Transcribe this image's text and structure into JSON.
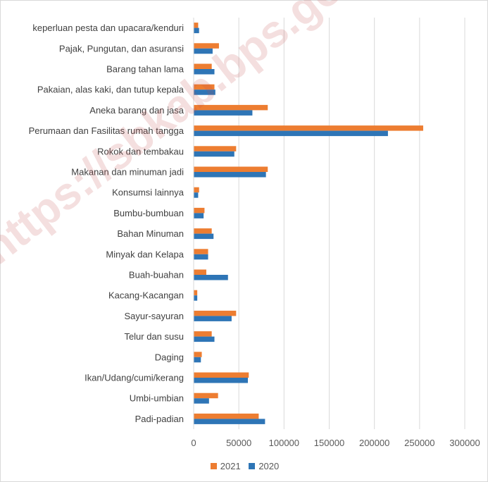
{
  "chart_data": {
    "type": "bar",
    "orientation": "horizontal",
    "categories": [
      "keperluan pesta dan upacara/kenduri",
      "Pajak, Pungutan, dan asuransi",
      "Barang tahan lama",
      "Pakaian, alas kaki, dan tutup kepala",
      "Aneka barang dan jasa",
      "Perumaan dan Fasilitas rumah tangga",
      "Rokok dan tembakau",
      "Makanan dan minuman jadi",
      "Konsumsi lainnya",
      "Bumbu-bumbuan",
      "Bahan Minuman",
      "Minyak dan Kelapa",
      "Buah-buahan",
      "Kacang-Kacangan",
      "Sayur-sayuran",
      "Telur dan susu",
      "Daging",
      "Ikan/Udang/cumi/kerang",
      "Umbi-umbian",
      "Padi-padian"
    ],
    "series": [
      {
        "name": "2021",
        "color": "#ed7d31",
        "values": [
          5000,
          28000,
          20000,
          23000,
          82000,
          254000,
          47000,
          82000,
          6000,
          12000,
          20000,
          16000,
          14000,
          4000,
          47000,
          20000,
          9000,
          61000,
          27000,
          72000
        ]
      },
      {
        "name": "2020",
        "color": "#2e75b6",
        "values": [
          6000,
          21000,
          23000,
          24000,
          65000,
          215000,
          45000,
          80000,
          5000,
          11000,
          22000,
          16000,
          38000,
          4000,
          42000,
          23000,
          8000,
          60000,
          17000,
          79000
        ]
      }
    ],
    "xlim": [
      0,
      300000
    ],
    "xticks": [
      "0",
      "50000",
      "100000",
      "150000",
      "200000",
      "250000",
      "300000"
    ],
    "grid": true,
    "legend_position": "bottom",
    "watermark": "https://sbkab.bps.go.id"
  }
}
